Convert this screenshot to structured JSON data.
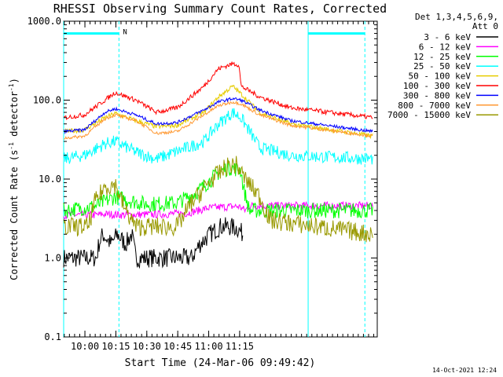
{
  "chart_data": {
    "type": "line",
    "title": "RHESSI Observing Summary Count Rates, Corrected",
    "xlabel": "Start Time (24-Mar-06 09:49:42)",
    "ylabel_main": "Corrected Count Rate (s",
    "ylabel_sup1": "-1",
    "ylabel_mid": " detector",
    "ylabel_sup2": "-1",
    "ylabel_end": ")",
    "yscale": "log",
    "ylim": [
      0.1,
      1000
    ],
    "xlim": [
      0,
      152
    ],
    "x_unit": "minutes after 09:49:42",
    "x_ticks": [
      {
        "v": 10.3,
        "label": "10:00"
      },
      {
        "v": 25.3,
        "label": "10:15"
      },
      {
        "v": 40.3,
        "label": "10:30"
      },
      {
        "v": 55.3,
        "label": "10:45"
      },
      {
        "v": 70.3,
        "label": "11:00"
      },
      {
        "v": 85.3,
        "label": "11:15"
      }
    ],
    "y_ticks": [
      {
        "v": 0.1,
        "label": "0.1"
      },
      {
        "v": 1,
        "label": "1.0"
      },
      {
        "v": 10,
        "label": "10.0"
      },
      {
        "v": 100,
        "label": "100.0"
      },
      {
        "v": 1000,
        "label": "1000.0"
      }
    ],
    "legend": {
      "header1": "Det 1,3,4,5,6,9,",
      "header2": "Att 0",
      "placement": "top-right outside"
    },
    "night_marker": "N",
    "series": [
      {
        "name": "3 - 6 keV",
        "color": "#000000",
        "points": [
          [
            0,
            1
          ],
          [
            16,
            1
          ],
          [
            17,
            1.5
          ],
          [
            19,
            2
          ],
          [
            23,
            1.5
          ],
          [
            26,
            2
          ],
          [
            30,
            1.5
          ],
          [
            33,
            2
          ],
          [
            35,
            1
          ],
          [
            62,
            1
          ],
          [
            66,
            1.5
          ],
          [
            71,
            2
          ],
          [
            76,
            2.5
          ],
          [
            80,
            2.5
          ],
          [
            84,
            2.4
          ],
          [
            87,
            2
          ]
        ],
        "noise": 0.12
      },
      {
        "name": "6 - 12 keV",
        "color": "#ff00ff",
        "points": [
          [
            0,
            3.5
          ],
          [
            15,
            3.5
          ],
          [
            20,
            3.6
          ],
          [
            30,
            3.5
          ],
          [
            50,
            3.6
          ],
          [
            60,
            3.7
          ],
          [
            70,
            4.3
          ],
          [
            82,
            4.5
          ],
          [
            85,
            4.5
          ],
          [
            88,
            4
          ],
          [
            90,
            4.6
          ],
          [
            150,
            4.6
          ]
        ],
        "noise": 0.05
      },
      {
        "name": "12 - 25 keV",
        "color": "#00ff00",
        "points": [
          [
            0,
            4
          ],
          [
            15,
            4.5
          ],
          [
            25,
            6
          ],
          [
            30,
            5.5
          ],
          [
            40,
            4.8
          ],
          [
            55,
            5
          ],
          [
            65,
            7
          ],
          [
            75,
            12
          ],
          [
            80,
            14
          ],
          [
            86,
            13
          ],
          [
            87,
            8
          ],
          [
            90,
            4
          ],
          [
            150,
            4
          ]
        ],
        "noise": 0.1
      },
      {
        "name": "25 - 50 keV",
        "color": "#00ffff",
        "points": [
          [
            0,
            18
          ],
          [
            10,
            20
          ],
          [
            20,
            28
          ],
          [
            25,
            30
          ],
          [
            35,
            22
          ],
          [
            45,
            18
          ],
          [
            60,
            25
          ],
          [
            68,
            30
          ],
          [
            75,
            50
          ],
          [
            82,
            70
          ],
          [
            86,
            60
          ],
          [
            95,
            25
          ],
          [
            110,
            20
          ],
          [
            150,
            18
          ]
        ],
        "noise": 0.08
      },
      {
        "name": "50 - 100 keV",
        "color": "#e6cc00",
        "points": [
          [
            0,
            40
          ],
          [
            10,
            42
          ],
          [
            20,
            60
          ],
          [
            25,
            68
          ],
          [
            35,
            55
          ],
          [
            45,
            46
          ],
          [
            55,
            48
          ],
          [
            68,
            70
          ],
          [
            75,
            110
          ],
          [
            82,
            150
          ],
          [
            86,
            120
          ],
          [
            95,
            70
          ],
          [
            110,
            50
          ],
          [
            150,
            35
          ]
        ],
        "noise": 0.03
      },
      {
        "name": "100 - 300 keV",
        "color": "#ff0000",
        "points": [
          [
            0,
            60
          ],
          [
            10,
            65
          ],
          [
            20,
            100
          ],
          [
            25,
            125
          ],
          [
            35,
            100
          ],
          [
            45,
            70
          ],
          [
            55,
            80
          ],
          [
            68,
            150
          ],
          [
            75,
            250
          ],
          [
            82,
            290
          ],
          [
            85,
            280
          ],
          [
            86,
            150
          ],
          [
            95,
            110
          ],
          [
            110,
            80
          ],
          [
            150,
            60
          ]
        ],
        "noise": 0.03
      },
      {
        "name": "300 - 800 keV",
        "color": "#0000ff",
        "points": [
          [
            0,
            40
          ],
          [
            10,
            42
          ],
          [
            20,
            70
          ],
          [
            25,
            78
          ],
          [
            35,
            65
          ],
          [
            45,
            50
          ],
          [
            55,
            52
          ],
          [
            68,
            75
          ],
          [
            75,
            95
          ],
          [
            82,
            105
          ],
          [
            86,
            100
          ],
          [
            95,
            75
          ],
          [
            110,
            55
          ],
          [
            150,
            40
          ]
        ],
        "noise": 0.02
      },
      {
        "name": "800 - 7000 keV",
        "color": "#ff9933",
        "points": [
          [
            0,
            33
          ],
          [
            10,
            35
          ],
          [
            20,
            58
          ],
          [
            25,
            65
          ],
          [
            35,
            55
          ],
          [
            45,
            38
          ],
          [
            55,
            40
          ],
          [
            68,
            65
          ],
          [
            75,
            85
          ],
          [
            82,
            95
          ],
          [
            86,
            90
          ],
          [
            95,
            65
          ],
          [
            110,
            48
          ],
          [
            150,
            35
          ]
        ],
        "noise": 0.02
      },
      {
        "name": "7000 - 15000 keV",
        "color": "#999900",
        "points": [
          [
            0,
            2.5
          ],
          [
            12,
            2.5
          ],
          [
            15,
            5
          ],
          [
            20,
            8
          ],
          [
            25,
            8.5
          ],
          [
            30,
            4
          ],
          [
            35,
            2.5
          ],
          [
            55,
            2.5
          ],
          [
            62,
            5
          ],
          [
            72,
            10
          ],
          [
            80,
            15
          ],
          [
            84,
            15
          ],
          [
            88,
            10
          ],
          [
            95,
            6
          ],
          [
            100,
            3
          ],
          [
            150,
            2
          ]
        ],
        "noise": 0.12
      }
    ],
    "vertical_lines": [
      {
        "x": 0,
        "color": "#00ffff",
        "style": "solid"
      },
      {
        "x": 26.8,
        "color": "#00ffff",
        "style": "dashed"
      },
      {
        "x": 118.5,
        "color": "#00ffff",
        "style": "solid"
      },
      {
        "x": 146,
        "color": "#00ffff",
        "style": "dashed"
      }
    ],
    "night_bars": [
      {
        "x0": 0,
        "x1": 26.8,
        "y": 700,
        "color": "#00ffff"
      },
      {
        "x0": 118.5,
        "x1": 146,
        "y": 700,
        "color": "#00ffff"
      }
    ]
  },
  "footer_timestamp": "14-Oct-2021 12:24"
}
